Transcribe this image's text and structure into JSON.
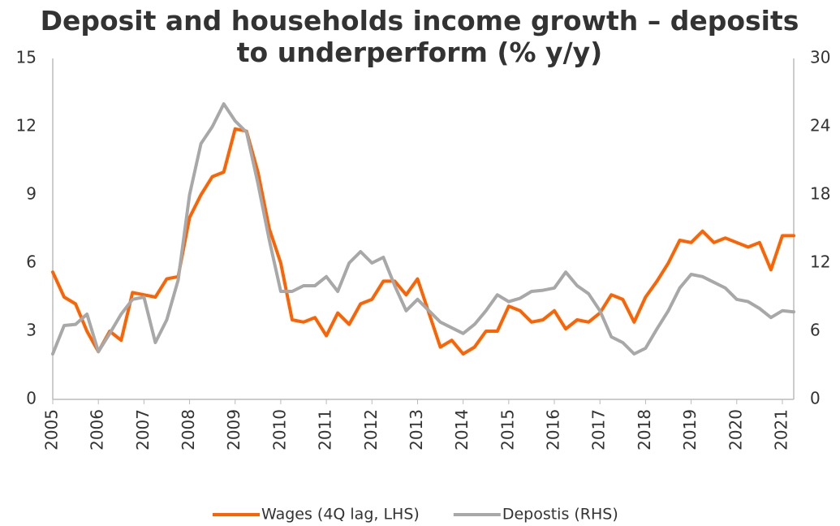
{
  "chart_data": {
    "type": "line",
    "title": "Deposit and households income growth – deposits to underperform (% y/y)",
    "x": [
      2005,
      2005.25,
      2005.5,
      2005.75,
      2006,
      2006.25,
      2006.5,
      2006.75,
      2007,
      2007.25,
      2007.5,
      2007.75,
      2008,
      2008.25,
      2008.5,
      2008.75,
      2009,
      2009.25,
      2009.5,
      2009.75,
      2010,
      2010.25,
      2010.5,
      2010.75,
      2011,
      2011.25,
      2011.5,
      2011.75,
      2012,
      2012.25,
      2012.5,
      2012.75,
      2013,
      2013.25,
      2013.5,
      2013.75,
      2014,
      2014.25,
      2014.5,
      2014.75,
      2015,
      2015.25,
      2015.5,
      2015.75,
      2016,
      2016.25,
      2016.5,
      2016.75,
      2017,
      2017.25,
      2017.5,
      2017.75,
      2018,
      2018.25,
      2018.5,
      2018.75,
      2019,
      2019.25,
      2019.5,
      2019.75,
      2020,
      2020.25,
      2020.5,
      2020.75,
      2021,
      2021.25
    ],
    "series": [
      {
        "name": "Wages (4Q lag, LHS)",
        "color": "#ff6200",
        "axis": "y",
        "values": [
          5.6,
          4.5,
          4.2,
          3.0,
          2.1,
          3.0,
          2.6,
          4.7,
          4.6,
          4.5,
          5.3,
          5.4,
          8.0,
          9.0,
          9.8,
          10.0,
          11.9,
          11.8,
          10.0,
          7.5,
          6.0,
          3.5,
          3.4,
          3.6,
          2.8,
          3.8,
          3.3,
          4.2,
          4.4,
          5.2,
          5.2,
          4.6,
          5.3,
          3.8,
          2.3,
          2.6,
          2.0,
          2.3,
          3.0,
          3.0,
          4.1,
          3.9,
          3.4,
          3.5,
          3.9,
          3.1,
          3.5,
          3.4,
          3.8,
          4.6,
          4.4,
          3.4,
          4.5,
          5.2,
          6.0,
          7.0,
          6.9,
          7.4,
          6.9,
          7.1,
          6.9,
          6.7,
          6.9,
          5.7,
          7.2,
          7.2
        ]
      },
      {
        "name": "Depostis (RHS)",
        "color": "#a8a8a8",
        "axis": "y2",
        "values": [
          4,
          6.5,
          6.6,
          7.5,
          4.2,
          5.8,
          7.5,
          8.8,
          9.0,
          5.0,
          7.0,
          10.5,
          18,
          22.5,
          24,
          26,
          24.5,
          23.5,
          19,
          14,
          9.5,
          9.5,
          10,
          10,
          10.8,
          9.5,
          12,
          13,
          12,
          12.5,
          10,
          7.8,
          8.8,
          7.8,
          6.8,
          6.3,
          5.8,
          6.6,
          7.8,
          9.2,
          8.6,
          8.9,
          9.5,
          9.6,
          9.8,
          11.2,
          10,
          9.3,
          7.8,
          5.5,
          5.0,
          4.0,
          4.5,
          6.2,
          7.8,
          9.8,
          11.0,
          10.8,
          10.3,
          9.8,
          8.8,
          8.6,
          8.0,
          7.2,
          7.8,
          7.7
        ]
      }
    ],
    "xlim": [
      2005,
      2021.25
    ],
    "xticks": [
      2005,
      2006,
      2007,
      2008,
      2009,
      2010,
      2011,
      2012,
      2013,
      2014,
      2015,
      2016,
      2017,
      2018,
      2019,
      2020,
      2021
    ],
    "ylim": [
      0,
      15
    ],
    "yticks": [
      0,
      3,
      6,
      9,
      12,
      15
    ],
    "y2lim": [
      0,
      30
    ],
    "y2ticks": [
      0,
      6,
      12,
      18,
      24,
      30
    ],
    "grid": false,
    "legend": "bottom"
  }
}
